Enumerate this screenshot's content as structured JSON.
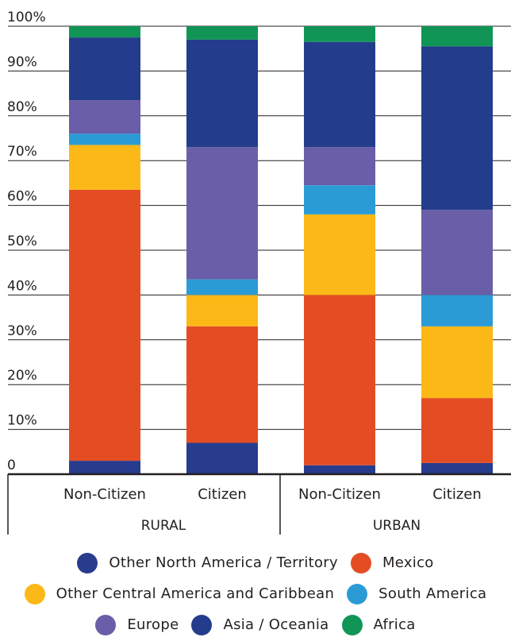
{
  "chart_data": {
    "type": "bar",
    "stacked": true,
    "percent": true,
    "groups": [
      "RURAL",
      "URBAN"
    ],
    "categories": [
      "Non-Citizen",
      "Citizen",
      "Non-Citizen",
      "Citizen"
    ],
    "category_groups": [
      "RURAL",
      "RURAL",
      "URBAN",
      "URBAN"
    ],
    "yticks": [
      "0",
      "10%",
      "20%",
      "30%",
      "40%",
      "50%",
      "60%",
      "70%",
      "80%",
      "90%",
      "100%"
    ],
    "ylim": [
      0,
      100
    ],
    "grid": true,
    "legend_position": "bottom",
    "series": [
      {
        "name": "Other North America / Territory",
        "color": "#283c8e",
        "values": [
          3,
          7,
          2,
          2.5
        ]
      },
      {
        "name": "Mexico",
        "color": "#e44d24",
        "values": [
          60.5,
          26,
          38,
          14.5
        ]
      },
      {
        "name": "Other Central America and Caribbean",
        "color": "#fbb816",
        "values": [
          10,
          7,
          18,
          16
        ]
      },
      {
        "name": "South America",
        "color": "#2b9bd6",
        "values": [
          2.5,
          3.5,
          6.5,
          7
        ]
      },
      {
        "name": "Europe",
        "color": "#6a5ea8",
        "values": [
          7.5,
          29.5,
          8.5,
          19
        ]
      },
      {
        "name": "Asia / Oceania",
        "color": "#243c8c",
        "values": [
          14,
          24,
          23.5,
          36.5
        ]
      },
      {
        "name": "Africa",
        "color": "#119557",
        "values": [
          2.5,
          3,
          3.5,
          4.5
        ]
      }
    ]
  },
  "legend": {
    "rows": [
      [
        0,
        1
      ],
      [
        2,
        3
      ],
      [
        4,
        5,
        6
      ]
    ]
  }
}
